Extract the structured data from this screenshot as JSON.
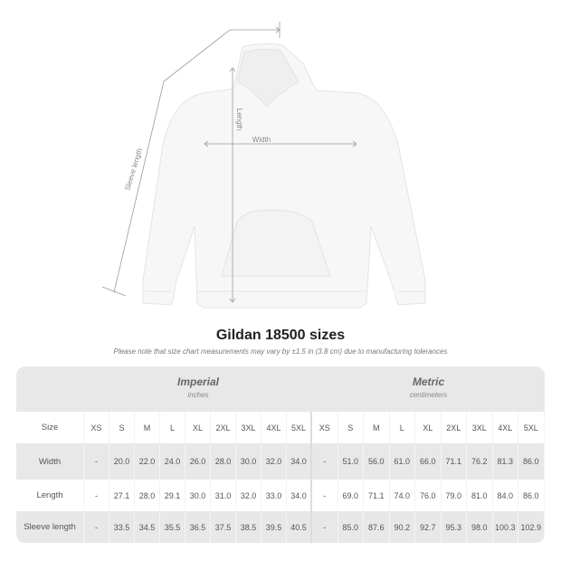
{
  "diagram": {
    "labels": {
      "sleeve": "Sleeve length",
      "length": "Length",
      "width": "Width"
    },
    "garment_color": "#fafafa",
    "line_color": "#9a9a9a"
  },
  "header": {
    "title": "Gildan 18500 sizes",
    "note": "Please note that size chart measurements may vary by ±1.5 in (3.8 cm) due to manufacturing tolerances"
  },
  "table": {
    "imperial": {
      "title": "Imperial",
      "unit": "inches"
    },
    "metric": {
      "title": "Metric",
      "unit": "centimeters"
    },
    "size_label": "Size",
    "sizes": [
      "XS",
      "S",
      "M",
      "L",
      "XL",
      "2XL",
      "3XL",
      "4XL",
      "5XL"
    ],
    "rows": [
      {
        "label": "Width",
        "imperial": [
          "-",
          "20.0",
          "22.0",
          "24.0",
          "26.0",
          "28.0",
          "30.0",
          "32.0",
          "34.0"
        ],
        "metric": [
          "-",
          "51.0",
          "56.0",
          "61.0",
          "66.0",
          "71.1",
          "76.2",
          "81.3",
          "86.0"
        ]
      },
      {
        "label": "Length",
        "imperial": [
          "-",
          "27.1",
          "28.0",
          "29.1",
          "30.0",
          "31.0",
          "32.0",
          "33.0",
          "34.0"
        ],
        "metric": [
          "-",
          "69.0",
          "71.1",
          "74.0",
          "76.0",
          "79.0",
          "81.0",
          "84.0",
          "86.0"
        ]
      },
      {
        "label": "Sleeve length",
        "imperial": [
          "-",
          "33.5",
          "34.5",
          "35.5",
          "36.5",
          "37.5",
          "38.5",
          "39.5",
          "40.5"
        ],
        "metric": [
          "-",
          "85.0",
          "87.6",
          "90.2",
          "92.7",
          "95.3",
          "98.0",
          "100.3",
          "102.9"
        ]
      }
    ]
  }
}
